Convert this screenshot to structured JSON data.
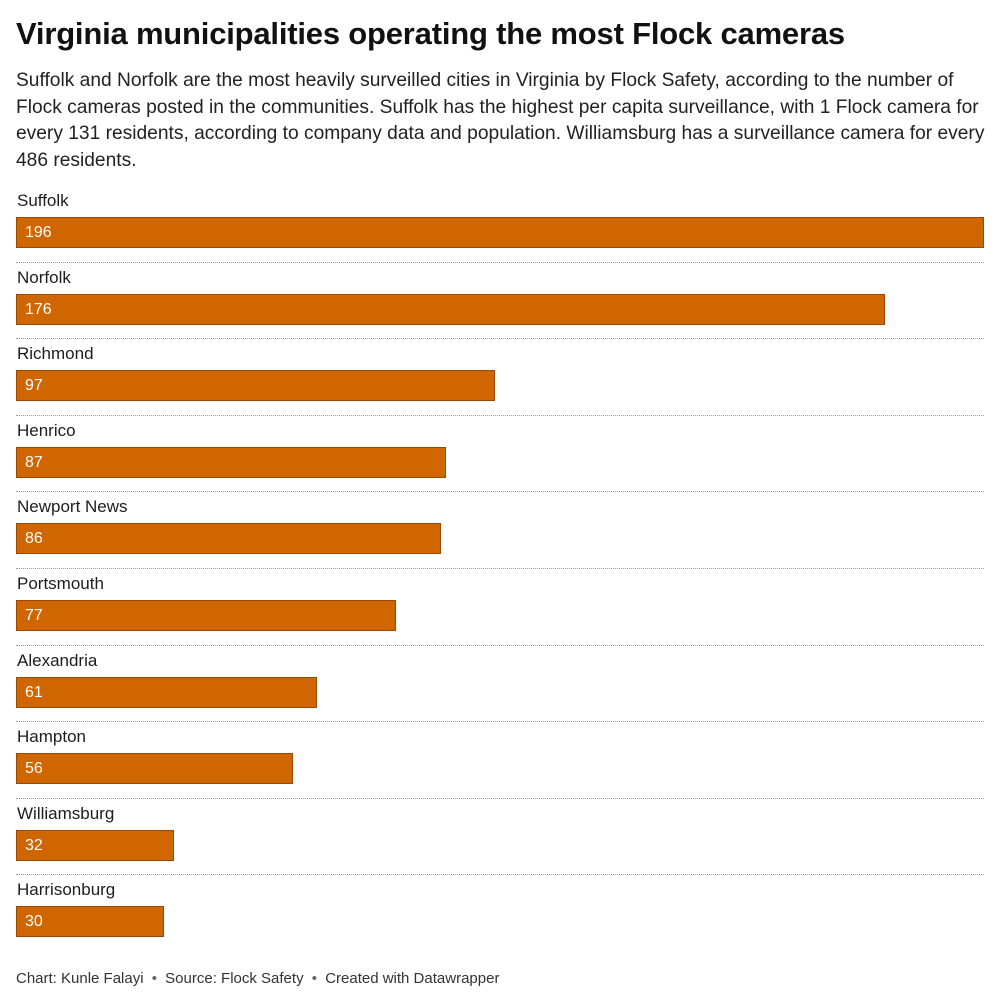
{
  "chart_data": {
    "type": "bar",
    "orientation": "horizontal",
    "title": "Virginia municipalities operating the most Flock cameras",
    "subtitle": "Suffolk and Norfolk are the most heavily surveilled cities in Virginia by Flock Safety, according to the number of Flock cameras posted in the communities. Suffolk has the highest per capita surveillance, with 1 Flock camera for every 131 residents, according to company data and population. Williamsburg has a surveillance camera for every 486 residents.",
    "categories": [
      "Suffolk",
      "Norfolk",
      "Richmond",
      "Henrico",
      "Newport News",
      "Portsmouth",
      "Alexandria",
      "Hampton",
      "Williamsburg",
      "Harrisonburg"
    ],
    "values": [
      196,
      176,
      97,
      87,
      86,
      77,
      61,
      56,
      32,
      30
    ],
    "xlim": [
      0,
      196
    ],
    "bar_color": "#cf6600",
    "grid": false,
    "data_labels": true
  },
  "footer": {
    "chart_credit": "Chart: Kunle Falayi",
    "source": "Source: Flock Safety",
    "created_with": "Created with Datawrapper",
    "separator": "•"
  }
}
